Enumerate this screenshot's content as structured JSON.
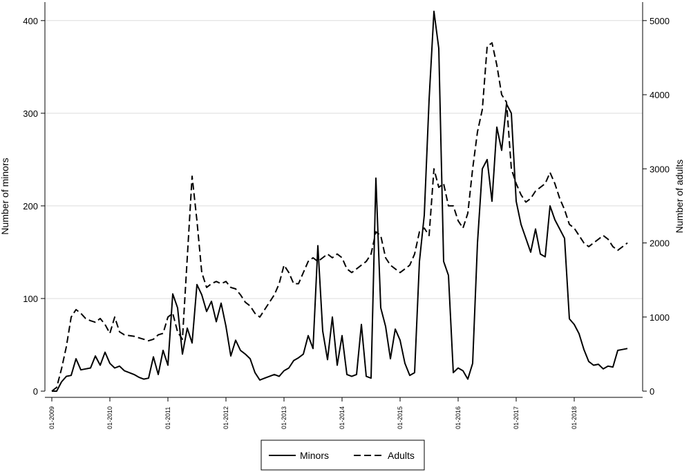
{
  "chart_data": {
    "type": "line",
    "title": "",
    "xlabel": "",
    "ylabel": "Number of minors",
    "y2label": "Number of adults",
    "xlim": [
      "2009-01",
      "2018-12"
    ],
    "ylim": [
      0,
      420
    ],
    "y2lim": [
      0,
      5250
    ],
    "x_ticks": [
      "01-2009",
      "01-2010",
      "01-2011",
      "01-2012",
      "01-2013",
      "01-2014",
      "01-2015",
      "01-2016",
      "01-2017",
      "01-2018"
    ],
    "y_ticks": [
      "0",
      "100",
      "200",
      "300",
      "400"
    ],
    "y2_ticks": [
      "0",
      "1000",
      "2000",
      "3000",
      "4000",
      "5000"
    ],
    "grid": true,
    "legend_position": "bottom",
    "series": [
      {
        "name": "Minors",
        "axis": "left",
        "style": "solid",
        "points": [
          [
            "2009-01",
            0
          ],
          [
            "2009-02",
            0
          ],
          [
            "2009-03",
            10
          ],
          [
            "2009-04",
            16
          ],
          [
            "2009-05",
            17
          ],
          [
            "2009-06",
            35
          ],
          [
            "2009-07",
            23
          ],
          [
            "2009-08",
            24
          ],
          [
            "2009-09",
            25
          ],
          [
            "2009-10",
            38
          ],
          [
            "2009-11",
            28
          ],
          [
            "2009-12",
            42
          ],
          [
            "2010-01",
            30
          ],
          [
            "2010-02",
            25
          ],
          [
            "2010-03",
            27
          ],
          [
            "2010-04",
            22
          ],
          [
            "2010-05",
            20
          ],
          [
            "2010-06",
            18
          ],
          [
            "2010-07",
            15
          ],
          [
            "2010-08",
            13
          ],
          [
            "2010-09",
            14
          ],
          [
            "2010-10",
            37
          ],
          [
            "2010-11",
            18
          ],
          [
            "2010-12",
            44
          ],
          [
            "2011-01",
            28
          ],
          [
            "2011-02",
            105
          ],
          [
            "2011-03",
            90
          ],
          [
            "2011-04",
            40
          ],
          [
            "2011-05",
            68
          ],
          [
            "2011-06",
            52
          ],
          [
            "2011-07",
            115
          ],
          [
            "2011-08",
            104
          ],
          [
            "2011-09",
            86
          ],
          [
            "2011-10",
            97
          ],
          [
            "2011-11",
            75
          ],
          [
            "2011-12",
            95
          ],
          [
            "2012-01",
            70
          ],
          [
            "2012-02",
            38
          ],
          [
            "2012-03",
            55
          ],
          [
            "2012-04",
            44
          ],
          [
            "2012-05",
            40
          ],
          [
            "2012-06",
            35
          ],
          [
            "2012-07",
            20
          ],
          [
            "2012-08",
            12
          ],
          [
            "2012-09",
            14
          ],
          [
            "2012-10",
            16
          ],
          [
            "2012-11",
            18
          ],
          [
            "2012-12",
            16
          ],
          [
            "2013-01",
            22
          ],
          [
            "2013-02",
            25
          ],
          [
            "2013-03",
            33
          ],
          [
            "2013-04",
            36
          ],
          [
            "2013-05",
            40
          ],
          [
            "2013-06",
            60
          ],
          [
            "2013-07",
            46
          ],
          [
            "2013-08",
            157
          ],
          [
            "2013-09",
            65
          ],
          [
            "2013-10",
            34
          ],
          [
            "2013-11",
            80
          ],
          [
            "2013-12",
            28
          ],
          [
            "2014-01",
            60
          ],
          [
            "2014-02",
            18
          ],
          [
            "2014-03",
            16
          ],
          [
            "2014-04",
            18
          ],
          [
            "2014-05",
            72
          ],
          [
            "2014-06",
            16
          ],
          [
            "2014-07",
            14
          ],
          [
            "2014-08",
            230
          ],
          [
            "2014-09",
            90
          ],
          [
            "2014-10",
            70
          ],
          [
            "2014-11",
            35
          ],
          [
            "2014-12",
            67
          ],
          [
            "2015-01",
            55
          ],
          [
            "2015-02",
            30
          ],
          [
            "2015-03",
            17
          ],
          [
            "2015-04",
            20
          ],
          [
            "2015-05",
            140
          ],
          [
            "2015-06",
            190
          ],
          [
            "2015-07",
            315
          ],
          [
            "2015-08",
            410
          ],
          [
            "2015-09",
            370
          ],
          [
            "2015-10",
            140
          ],
          [
            "2015-11",
            125
          ],
          [
            "2015-12",
            20
          ],
          [
            "2016-01",
            25
          ],
          [
            "2016-02",
            22
          ],
          [
            "2016-03",
            13
          ],
          [
            "2016-04",
            30
          ],
          [
            "2016-05",
            160
          ],
          [
            "2016-06",
            240
          ],
          [
            "2016-07",
            250
          ],
          [
            "2016-08",
            205
          ],
          [
            "2016-09",
            285
          ],
          [
            "2016-10",
            260
          ],
          [
            "2016-11",
            310
          ],
          [
            "2016-12",
            300
          ],
          [
            "2017-01",
            205
          ],
          [
            "2017-02",
            180
          ],
          [
            "2017-03",
            165
          ],
          [
            "2017-04",
            150
          ],
          [
            "2017-05",
            175
          ],
          [
            "2017-06",
            148
          ],
          [
            "2017-07",
            145
          ],
          [
            "2017-08",
            200
          ],
          [
            "2017-09",
            185
          ],
          [
            "2017-10",
            175
          ],
          [
            "2017-11",
            165
          ],
          [
            "2017-12",
            78
          ],
          [
            "2018-01",
            72
          ],
          [
            "2018-02",
            62
          ],
          [
            "2018-03",
            45
          ],
          [
            "2018-04",
            32
          ],
          [
            "2018-05",
            28
          ],
          [
            "2018-06",
            29
          ],
          [
            "2018-07",
            24
          ],
          [
            "2018-08",
            27
          ],
          [
            "2018-09",
            26
          ],
          [
            "2018-10",
            44
          ],
          [
            "2018-11",
            45
          ],
          [
            "2018-12",
            46
          ]
        ]
      },
      {
        "name": "Adults",
        "axis": "right",
        "style": "dashed",
        "points": [
          [
            "2009-01",
            0
          ],
          [
            "2009-02",
            50
          ],
          [
            "2009-03",
            300
          ],
          [
            "2009-04",
            600
          ],
          [
            "2009-05",
            1000
          ],
          [
            "2009-06",
            1100
          ],
          [
            "2009-07",
            1050
          ],
          [
            "2009-08",
            980
          ],
          [
            "2009-09",
            950
          ],
          [
            "2009-10",
            930
          ],
          [
            "2009-11",
            980
          ],
          [
            "2009-12",
            900
          ],
          [
            "2010-01",
            780
          ],
          [
            "2010-02",
            1000
          ],
          [
            "2010-03",
            800
          ],
          [
            "2010-04",
            760
          ],
          [
            "2010-05",
            750
          ],
          [
            "2010-06",
            740
          ],
          [
            "2010-07",
            720
          ],
          [
            "2010-08",
            700
          ],
          [
            "2010-09",
            680
          ],
          [
            "2010-10",
            700
          ],
          [
            "2010-11",
            760
          ],
          [
            "2010-12",
            780
          ],
          [
            "2011-01",
            1000
          ],
          [
            "2011-02",
            1050
          ],
          [
            "2011-03",
            800
          ],
          [
            "2011-04",
            700
          ],
          [
            "2011-05",
            1800
          ],
          [
            "2011-06",
            2900
          ],
          [
            "2011-07",
            2300
          ],
          [
            "2011-08",
            1600
          ],
          [
            "2011-09",
            1400
          ],
          [
            "2011-10",
            1450
          ],
          [
            "2011-11",
            1480
          ],
          [
            "2011-12",
            1450
          ],
          [
            "2012-01",
            1480
          ],
          [
            "2012-02",
            1400
          ],
          [
            "2012-03",
            1380
          ],
          [
            "2012-04",
            1300
          ],
          [
            "2012-05",
            1200
          ],
          [
            "2012-06",
            1150
          ],
          [
            "2012-07",
            1050
          ],
          [
            "2012-08",
            1000
          ],
          [
            "2012-09",
            1100
          ],
          [
            "2012-10",
            1200
          ],
          [
            "2012-11",
            1300
          ],
          [
            "2012-12",
            1450
          ],
          [
            "2013-01",
            1700
          ],
          [
            "2013-02",
            1600
          ],
          [
            "2013-03",
            1450
          ],
          [
            "2013-04",
            1450
          ],
          [
            "2013-05",
            1600
          ],
          [
            "2013-06",
            1750
          ],
          [
            "2013-07",
            1800
          ],
          [
            "2013-08",
            1750
          ],
          [
            "2013-09",
            1800
          ],
          [
            "2013-10",
            1850
          ],
          [
            "2013-11",
            1800
          ],
          [
            "2013-12",
            1850
          ],
          [
            "2014-01",
            1800
          ],
          [
            "2014-02",
            1650
          ],
          [
            "2014-03",
            1600
          ],
          [
            "2014-04",
            1650
          ],
          [
            "2014-05",
            1700
          ],
          [
            "2014-06",
            1750
          ],
          [
            "2014-07",
            1850
          ],
          [
            "2014-08",
            2150
          ],
          [
            "2014-09",
            2100
          ],
          [
            "2014-10",
            1800
          ],
          [
            "2014-11",
            1700
          ],
          [
            "2014-12",
            1650
          ],
          [
            "2015-01",
            1600
          ],
          [
            "2015-02",
            1650
          ],
          [
            "2015-03",
            1700
          ],
          [
            "2015-04",
            1850
          ],
          [
            "2015-05",
            2150
          ],
          [
            "2015-06",
            2200
          ],
          [
            "2015-07",
            2100
          ],
          [
            "2015-08",
            3000
          ],
          [
            "2015-09",
            2750
          ],
          [
            "2015-10",
            2800
          ],
          [
            "2015-11",
            2500
          ],
          [
            "2015-12",
            2500
          ],
          [
            "2016-01",
            2300
          ],
          [
            "2016-02",
            2200
          ],
          [
            "2016-03",
            2400
          ],
          [
            "2016-04",
            3000
          ],
          [
            "2016-05",
            3500
          ],
          [
            "2016-06",
            3800
          ],
          [
            "2016-07",
            4650
          ],
          [
            "2016-08",
            4700
          ],
          [
            "2016-09",
            4400
          ],
          [
            "2016-10",
            4000
          ],
          [
            "2016-11",
            3900
          ],
          [
            "2016-12",
            3000
          ],
          [
            "2017-01",
            2800
          ],
          [
            "2017-02",
            2650
          ],
          [
            "2017-03",
            2550
          ],
          [
            "2017-04",
            2600
          ],
          [
            "2017-05",
            2700
          ],
          [
            "2017-06",
            2750
          ],
          [
            "2017-07",
            2800
          ],
          [
            "2017-08",
            2950
          ],
          [
            "2017-09",
            2800
          ],
          [
            "2017-10",
            2600
          ],
          [
            "2017-11",
            2450
          ],
          [
            "2017-12",
            2250
          ],
          [
            "2018-01",
            2200
          ],
          [
            "2018-02",
            2100
          ],
          [
            "2018-03",
            2000
          ],
          [
            "2018-04",
            1950
          ],
          [
            "2018-05",
            2000
          ],
          [
            "2018-06",
            2050
          ],
          [
            "2018-07",
            2100
          ],
          [
            "2018-08",
            2050
          ],
          [
            "2018-09",
            1950
          ],
          [
            "2018-10",
            1900
          ],
          [
            "2018-11",
            1950
          ],
          [
            "2018-12",
            2000
          ]
        ]
      }
    ]
  }
}
